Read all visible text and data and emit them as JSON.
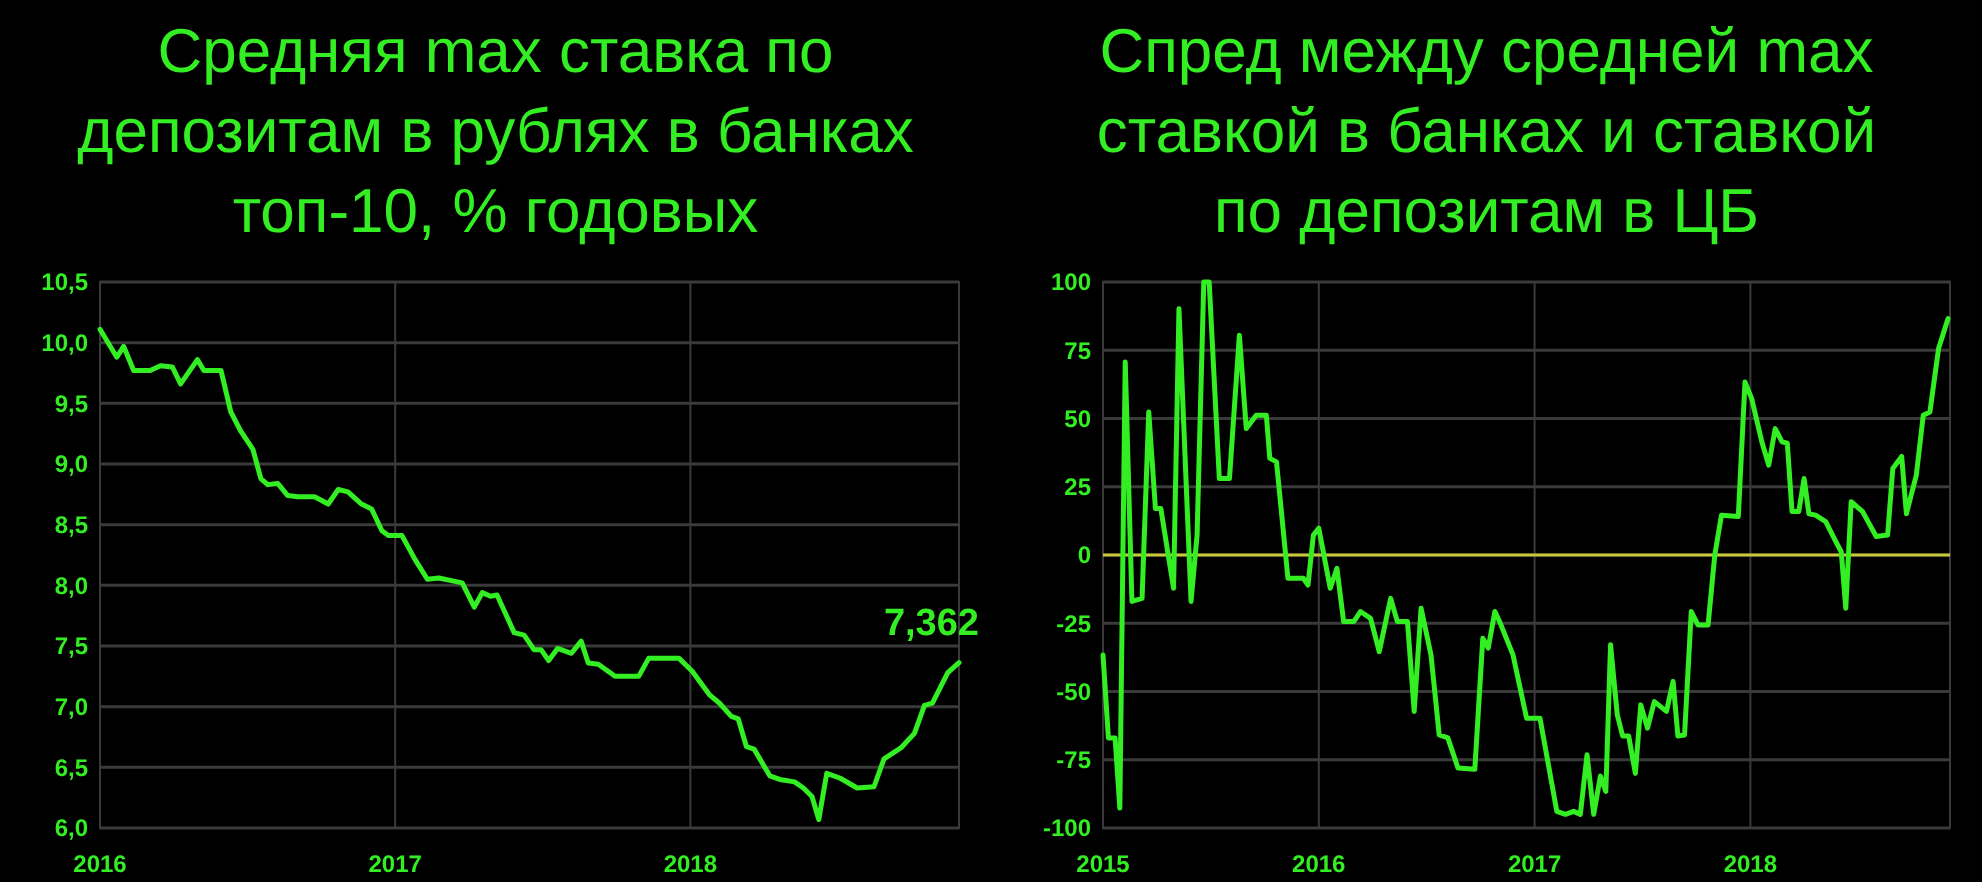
{
  "chart_data": [
    {
      "type": "line",
      "title": "Средняя max ставка по депозитам в рублях в банках топ-10, % годовых",
      "series": [
        {
          "color": "#33ee22",
          "x": [
            2016.0,
            2016.057,
            2016.08,
            2016.114,
            2016.17,
            2016.205,
            2016.245,
            2016.273,
            2016.33,
            2016.352,
            2016.41,
            2016.443,
            2016.477,
            2016.518,
            2016.545,
            2016.568,
            2016.602,
            2016.636,
            2016.67,
            2016.727,
            2016.773,
            2016.807,
            2016.84,
            2016.886,
            2016.92,
            2016.955,
            2016.977,
            2017.023,
            2017.068,
            2017.109,
            2017.148,
            2017.227,
            2017.268,
            2017.295,
            2017.323,
            2017.345,
            2017.403,
            2017.437,
            2017.47,
            2017.494,
            2017.52,
            2017.55,
            2017.597,
            2017.63,
            2017.654,
            2017.688,
            2017.745,
            2017.825,
            2017.859,
            2017.961,
            2018.007,
            2018.064,
            2018.098,
            2018.139,
            2018.162,
            2018.19,
            2018.216,
            2018.269,
            2018.303,
            2018.353,
            2018.383,
            2018.412,
            2018.435,
            2018.462,
            2018.508,
            2018.565,
            2018.622,
            2018.656,
            2018.713,
            2018.759,
            2018.793,
            2018.82,
            2018.872,
            2018.91
          ],
          "values": [
            10.11,
            9.88,
            9.97,
            9.77,
            9.77,
            9.81,
            9.8,
            9.66,
            9.86,
            9.77,
            9.77,
            9.43,
            9.27,
            9.12,
            8.88,
            8.83,
            8.84,
            8.74,
            8.73,
            8.73,
            8.67,
            8.79,
            8.77,
            8.67,
            8.63,
            8.45,
            8.41,
            8.41,
            8.21,
            8.05,
            8.06,
            8.02,
            7.82,
            7.94,
            7.91,
            7.92,
            7.61,
            7.59,
            7.47,
            7.47,
            7.38,
            7.48,
            7.44,
            7.54,
            7.36,
            7.35,
            7.25,
            7.25,
            7.4,
            7.4,
            7.29,
            7.1,
            7.03,
            6.92,
            6.9,
            6.67,
            6.65,
            6.43,
            6.4,
            6.38,
            6.33,
            6.26,
            6.07,
            6.45,
            6.41,
            6.33,
            6.34,
            6.57,
            6.66,
            6.78,
            7.01,
            7.03,
            7.28,
            7.362
          ]
        }
      ],
      "xlim": [
        2016,
        2018.91
      ],
      "xticks": [
        2016,
        2017,
        2018
      ],
      "ylim": [
        6.0,
        10.5
      ],
      "yticks": [
        {
          "value": 6.0,
          "label": "6,0"
        },
        {
          "value": 6.5,
          "label": "6,5"
        },
        {
          "value": 7.0,
          "label": "7,0"
        },
        {
          "value": 7.5,
          "label": "7,5"
        },
        {
          "value": 8.0,
          "label": "8,0"
        },
        {
          "value": 8.5,
          "label": "8,5"
        },
        {
          "value": 9.0,
          "label": "9,0"
        },
        {
          "value": 9.5,
          "label": "9,5"
        },
        {
          "value": 10.0,
          "label": "10,0"
        },
        {
          "value": 10.5,
          "label": "10,5"
        }
      ],
      "grid": true,
      "annotations": [
        {
          "text": "7,362",
          "x": 2018.91,
          "y": 7.362
        }
      ]
    },
    {
      "type": "line",
      "title": "Спред между средней max ставкой в банках и ставкой по депозитам в ЦБ",
      "series": [
        {
          "color": "#33ee22",
          "x": [
            2015.0,
            2015.025,
            2015.056,
            2015.078,
            2015.103,
            2015.134,
            2015.181,
            2015.212,
            2015.243,
            2015.268,
            2015.327,
            2015.352,
            2015.408,
            2015.436,
            2015.467,
            2015.492,
            2015.539,
            2015.586,
            2015.632,
            2015.664,
            2015.71,
            2015.757,
            2015.773,
            2015.804,
            2015.857,
            2015.928,
            2015.95,
            2015.975,
            2016.0,
            2016.053,
            2016.084,
            2016.115,
            2016.162,
            2016.193,
            2016.24,
            2016.28,
            2016.333,
            2016.364,
            2016.411,
            2016.442,
            2016.474,
            2016.52,
            2016.558,
            2016.598,
            2016.645,
            2016.723,
            2016.76,
            2016.785,
            2016.816,
            2016.838,
            2016.9,
            2016.963,
            2017.025,
            2017.103,
            2017.143,
            2017.181,
            2017.212,
            2017.243,
            2017.274,
            2017.305,
            2017.33,
            2017.352,
            2017.383,
            2017.408,
            2017.436,
            2017.467,
            2017.492,
            2017.523,
            2017.555,
            2017.611,
            2017.642,
            2017.664,
            2017.695,
            2017.726,
            2017.757,
            2017.804,
            2017.835,
            2017.866,
            2017.944,
            2017.975,
            2018.006,
            2018.053,
            2018.085,
            2018.115,
            2018.146,
            2018.171,
            2018.193,
            2018.224,
            2018.249,
            2018.271,
            2018.302,
            2018.349,
            2018.396,
            2018.421,
            2018.442,
            2018.467,
            2018.52,
            2018.583,
            2018.636,
            2018.66,
            2018.701,
            2018.723,
            2018.769,
            2018.801,
            2018.832,
            2018.872,
            2018.916
          ],
          "values": [
            -36.6,
            -67,
            -67,
            -92.7,
            70.7,
            -17,
            -15.9,
            52.4,
            17,
            17,
            -12.2,
            90.2,
            -17,
            7.3,
            100,
            100,
            28,
            28,
            80.5,
            46.3,
            51.2,
            51.2,
            35.4,
            34.1,
            -8.5,
            -8.5,
            -11,
            7.3,
            9.8,
            -12.2,
            -4.9,
            -24.4,
            -24.4,
            -20.7,
            -23.2,
            -35.4,
            -15.9,
            -24.4,
            -24.4,
            -57.3,
            -19.5,
            -36.6,
            -65.9,
            -67,
            -78,
            -78.5,
            -30.5,
            -34.1,
            -20.7,
            -24.4,
            -36.6,
            -59.8,
            -59.8,
            -93.9,
            -95,
            -93.9,
            -95,
            -73.2,
            -95,
            -81,
            -86.6,
            -32.9,
            -58.5,
            -66.3,
            -66.3,
            -80,
            -54.9,
            -63.4,
            -53.7,
            -57.3,
            -46.3,
            -66.3,
            -65.9,
            -20.7,
            -25.6,
            -25.6,
            0,
            14.6,
            14.1,
            63.4,
            57.3,
            41.5,
            32.9,
            46.3,
            41.5,
            41,
            15.9,
            15.9,
            28,
            15.1,
            14.6,
            12.2,
            4.9,
            1.2,
            -19.5,
            19.5,
            15.9,
            6.8,
            7.3,
            31.7,
            36.1,
            15.1,
            29.3,
            51.2,
            52.4,
            75.6,
            86.6
          ]
        }
      ],
      "xlim": [
        2015,
        2018.925
      ],
      "xticks": [
        2015,
        2016,
        2017,
        2018
      ],
      "ylim": [
        -100,
        100
      ],
      "yticks": [
        -100,
        -75,
        -50,
        -25,
        0,
        25,
        50,
        75,
        100
      ],
      "grid": true,
      "ref_lines": [
        {
          "axis": "y",
          "value": 0,
          "color": "#c8c83c"
        }
      ]
    }
  ]
}
